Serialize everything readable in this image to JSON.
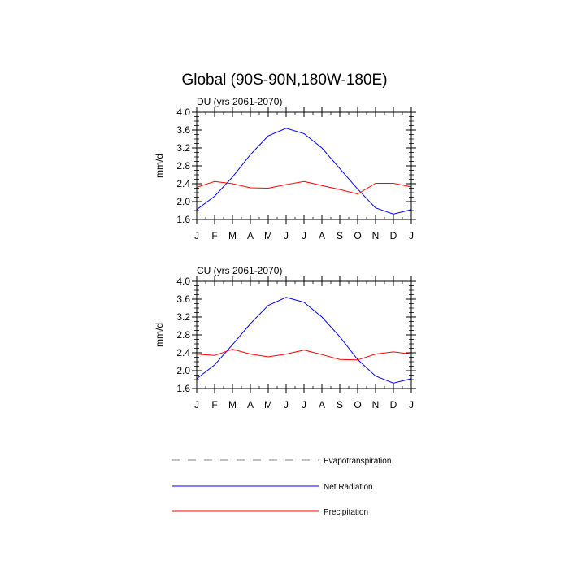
{
  "title": "Global (90S-90N,180W-180E)",
  "chart_data": [
    {
      "type": "line",
      "title": "DU (yrs 2061-2070)",
      "ylabel": "mm/d",
      "ylim": [
        1.6,
        4.0
      ],
      "yticks": [
        "1.6",
        "2.0",
        "2.4",
        "2.8",
        "3.2",
        "3.6",
        "4.0"
      ],
      "categories": [
        "J",
        "F",
        "M",
        "A",
        "M",
        "J",
        "J",
        "A",
        "S",
        "O",
        "N",
        "D",
        "J"
      ],
      "series": [
        {
          "name": "Net Radiation",
          "color": "#0000ff",
          "values": [
            1.82,
            2.12,
            2.55,
            3.05,
            3.47,
            3.64,
            3.52,
            3.2,
            2.74,
            2.28,
            1.86,
            1.72,
            1.82
          ]
        },
        {
          "name": "Precipitation",
          "color": "#ff0000",
          "values": [
            2.32,
            2.45,
            2.4,
            2.31,
            2.3,
            2.38,
            2.45,
            2.36,
            2.27,
            2.17,
            2.41,
            2.41,
            2.33
          ]
        }
      ]
    },
    {
      "type": "line",
      "title": "CU (yrs 2061-2070)",
      "ylabel": "mm/d",
      "ylim": [
        1.6,
        4.0
      ],
      "yticks": [
        "1.6",
        "2.0",
        "2.4",
        "2.8",
        "3.2",
        "3.6",
        "4.0"
      ],
      "categories": [
        "J",
        "F",
        "M",
        "A",
        "M",
        "J",
        "J",
        "A",
        "S",
        "O",
        "N",
        "D",
        "J"
      ],
      "series": [
        {
          "name": "Net Radiation",
          "color": "#0000ff",
          "values": [
            1.82,
            2.13,
            2.58,
            3.05,
            3.46,
            3.64,
            3.53,
            3.2,
            2.76,
            2.25,
            1.88,
            1.72,
            1.82
          ]
        },
        {
          "name": "Precipitation",
          "color": "#ff0000",
          "values": [
            2.37,
            2.34,
            2.48,
            2.37,
            2.31,
            2.37,
            2.46,
            2.36,
            2.25,
            2.24,
            2.37,
            2.42,
            2.37
          ]
        }
      ]
    }
  ],
  "legend": [
    {
      "label": "Evapotranspiration",
      "color": "#808080",
      "dash": true
    },
    {
      "label": "Net Radiation",
      "color": "#0000ff",
      "dash": false
    },
    {
      "label": "Precipitation",
      "color": "#ff0000",
      "dash": false
    }
  ]
}
